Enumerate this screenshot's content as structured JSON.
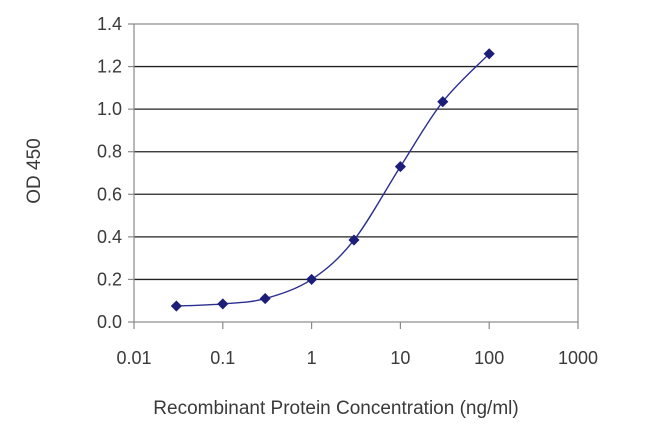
{
  "chart_data": {
    "type": "line",
    "x_scale": "log",
    "xlabel": "Recombinant Protein Concentration (ng/ml)",
    "ylabel": "OD 450",
    "xlim": [
      0.01,
      1000
    ],
    "ylim": [
      0,
      1.4
    ],
    "x_ticks": [
      0.01,
      0.1,
      1,
      10,
      100,
      1000
    ],
    "x_tick_labels": [
      "0.01",
      "0.1",
      "1",
      "10",
      "100",
      "1000"
    ],
    "y_ticks": [
      0,
      0.2,
      0.4,
      0.6,
      0.8,
      1.0,
      1.2,
      1.4
    ],
    "y_tick_labels": [
      "0.0",
      "0.2",
      "0.4",
      "0.6",
      "0.8",
      "1.0",
      "1.2",
      "1.4"
    ],
    "grid": "horizontal",
    "series": [
      {
        "x": [
          0.03,
          0.1,
          0.3,
          1,
          3,
          10,
          30,
          100
        ],
        "y": [
          0.075,
          0.085,
          0.11,
          0.2,
          0.385,
          0.73,
          1.035,
          1.26
        ]
      }
    ],
    "colors": {
      "series": "#2b2f8f",
      "marker": "#1c1f7a",
      "grid": "#222222",
      "axis": "#8a8a8a",
      "text": "#3a3a3a"
    }
  }
}
